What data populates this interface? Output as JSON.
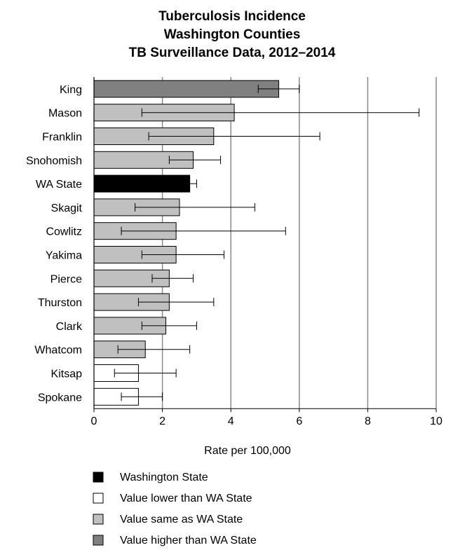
{
  "chart_data": {
    "type": "bar",
    "orientation": "horizontal",
    "title": [
      "Tuberculosis Incidence",
      "Washington Counties",
      "TB Surveillance Data, 2012–2014"
    ],
    "xlabel": "Rate per 100,000",
    "ylabel": "",
    "xlim": [
      0,
      10
    ],
    "xticks": [
      0,
      2,
      4,
      6,
      8,
      10
    ],
    "grid": "vertical",
    "legend_position": "bottom-left",
    "colors": {
      "state": "#000000",
      "lower": "#ffffff",
      "same": "#c0c0c0",
      "higher": "#808080"
    },
    "categories": [
      "King",
      "Mason",
      "Franklin",
      "Snohomish",
      "WA State",
      "Skagit",
      "Cowlitz",
      "Yakima",
      "Pierce",
      "Thurston",
      "Clark",
      "Whatcom",
      "Kitsap",
      "Spokane"
    ],
    "values": [
      5.4,
      4.1,
      3.5,
      2.9,
      2.8,
      2.5,
      2.4,
      2.4,
      2.2,
      2.2,
      2.1,
      1.5,
      1.3,
      1.3
    ],
    "ci_low": [
      4.8,
      1.4,
      1.6,
      2.2,
      2.6,
      1.2,
      0.8,
      1.4,
      1.7,
      1.3,
      1.4,
      0.7,
      0.6,
      0.8
    ],
    "ci_high": [
      6.0,
      9.5,
      6.6,
      3.7,
      3.0,
      4.7,
      5.6,
      3.8,
      2.9,
      3.5,
      3.0,
      2.8,
      2.4,
      2.0
    ],
    "groups": [
      "higher",
      "same",
      "same",
      "same",
      "state",
      "same",
      "same",
      "same",
      "same",
      "same",
      "same",
      "same",
      "lower",
      "lower"
    ],
    "legend": [
      {
        "label": "Washington State",
        "group": "state"
      },
      {
        "label": "Value lower than WA State",
        "group": "lower"
      },
      {
        "label": "Value same as WA State",
        "group": "same"
      },
      {
        "label": "Value higher than WA State",
        "group": "higher"
      }
    ]
  }
}
